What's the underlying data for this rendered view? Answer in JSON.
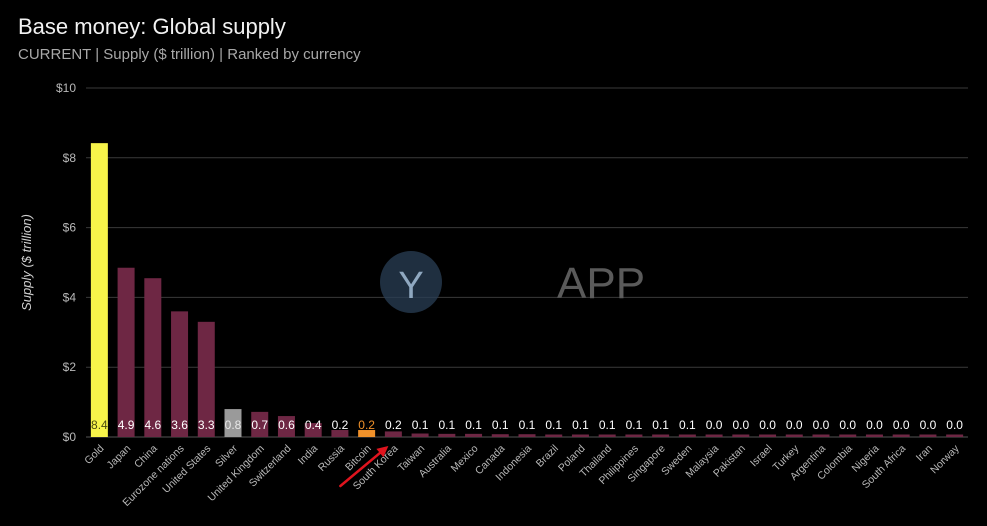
{
  "chart_data": {
    "type": "bar",
    "title": "Base money: Global supply",
    "subtitle": "CURRENT | Supply ($ trillion) | Ranked by currency",
    "ylabel": "Supply ($ trillion)",
    "xlabel": "",
    "ylim": [
      0,
      10
    ],
    "yticks": [
      "$0",
      "$2",
      "$4",
      "$6",
      "$8",
      "$10"
    ],
    "ytick_values": [
      0,
      2,
      4,
      6,
      8,
      10
    ],
    "grid": true,
    "legend": "none",
    "categories": [
      "Gold",
      "Japan",
      "China",
      "Eurozone nations",
      "United States",
      "Silver",
      "United Kingdom",
      "Switzerland",
      "India",
      "Russia",
      "Bitcoin",
      "South Korea",
      "Taiwan",
      "Australia",
      "Mexico",
      "Canada",
      "Indonesia",
      "Brazil",
      "Poland",
      "Thailand",
      "Philippines",
      "Singapore",
      "Sweden",
      "Malaysia",
      "Pakistan",
      "Israel",
      "Turkey",
      "Argentina",
      "Colombia",
      "Nigeria",
      "South Africa",
      "Iran",
      "Norway"
    ],
    "values": [
      8.42,
      4.85,
      4.55,
      3.6,
      3.3,
      0.8,
      0.72,
      0.6,
      0.4,
      0.2,
      0.2,
      0.16,
      0.1,
      0.09,
      0.09,
      0.08,
      0.08,
      0.07,
      0.06,
      0.06,
      0.05,
      0.05,
      0.05,
      0.04,
      0.04,
      0.04,
      0.03,
      0.03,
      0.03,
      0.02,
      0.02,
      0.02,
      0.02
    ],
    "value_labels": [
      "8.4",
      "4.9",
      "4.6",
      "3.6",
      "3.3",
      "0.8",
      "0.7",
      "0.6",
      "0.4",
      "0.2",
      "0.2",
      "0.2",
      "0.1",
      "0.1",
      "0.1",
      "0.1",
      "0.1",
      "0.1",
      "0.1",
      "0.1",
      "0.1",
      "0.1",
      "0.1",
      "0.0",
      "0.0",
      "0.0",
      "0.0",
      "0.0",
      "0.0",
      "0.0",
      "0.0",
      "0.0",
      "0.0"
    ],
    "bar_colors": {
      "Gold": "#f7f44a",
      "Silver": "#9a9a9a",
      "Bitcoin": "#f0912a",
      "default": "#6e2744"
    },
    "label_colors": {
      "Gold": "#4a4a10",
      "Silver": "#e8e8e8",
      "Bitcoin": "#f0912a",
      "default": "#ffffff"
    },
    "annotation": {
      "type": "arrow",
      "target": "South Korea",
      "color": "#e0141e"
    }
  },
  "watermark": {
    "text": "APP",
    "logo_letter": "Y"
  },
  "colors": {
    "background": "#000000",
    "grid": "#3a3a3a"
  }
}
